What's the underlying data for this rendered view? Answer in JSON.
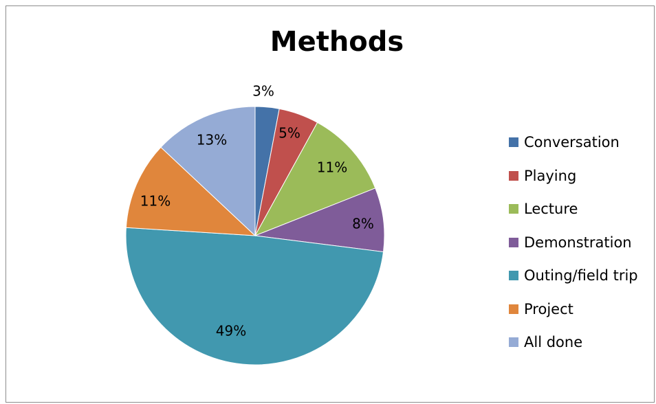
{
  "chart_data": {
    "type": "pie",
    "title": "Methods",
    "slices": [
      {
        "name": "Conversation",
        "value": 3,
        "label": "3%",
        "color": "#4472a8"
      },
      {
        "name": "Playing",
        "value": 5,
        "label": "5%",
        "color": "#c0504d"
      },
      {
        "name": "Lecture",
        "value": 11,
        "label": "11%",
        "color": "#9bbb59"
      },
      {
        "name": "Demonstration",
        "value": 8,
        "label": "8%",
        "color": "#7f5c99"
      },
      {
        "name": "Outing/field trip",
        "value": 49,
        "label": "49%",
        "color": "#4198af"
      },
      {
        "name": "Project",
        "value": 11,
        "label": "11%",
        "color": "#e0863c"
      },
      {
        "name": "All done",
        "value": 13,
        "label": "13%",
        "color": "#95abd5"
      }
    ],
    "legend_position": "right"
  }
}
